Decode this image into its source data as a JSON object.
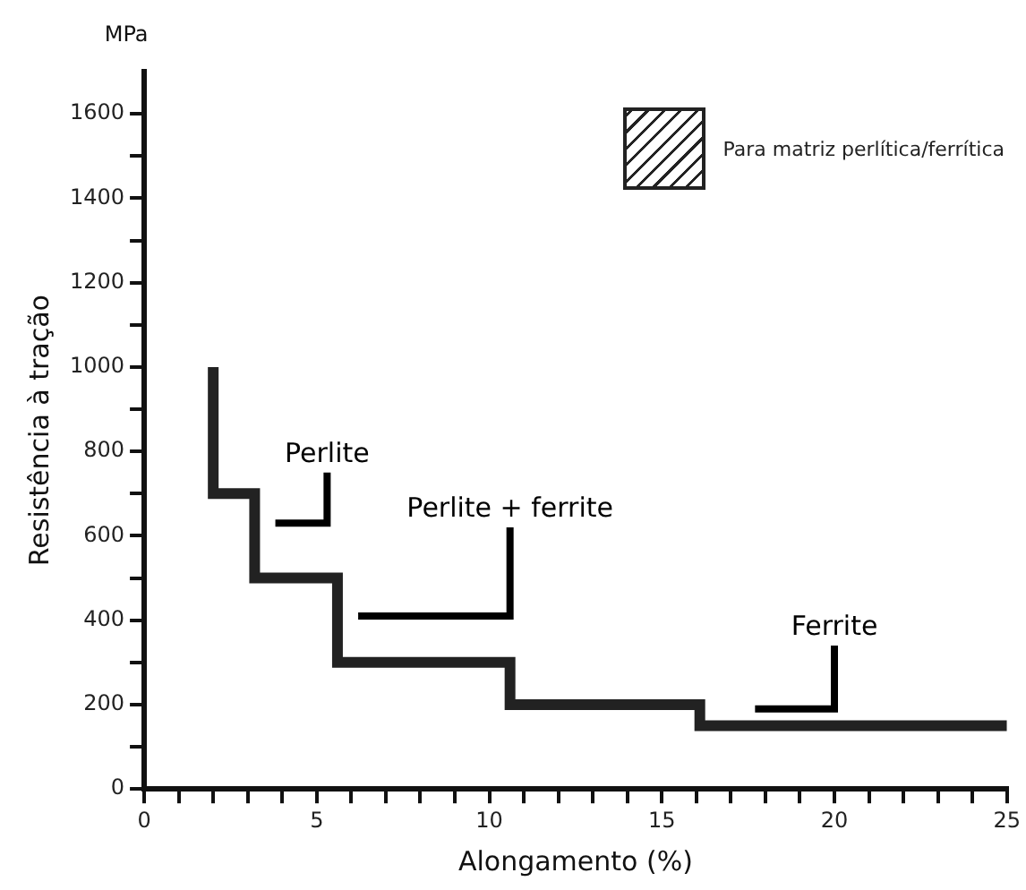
{
  "chart_data": {
    "type": "step",
    "xlabel": "Alongamento (%)",
    "ylabel": "Resistência à tração",
    "annotations": [
      "MPa"
    ],
    "xlim": [
      0,
      25
    ],
    "ylim": [
      0,
      1700
    ],
    "xticks": [
      0,
      {
        "value": 1,
        "label": null
      },
      {
        "value": 2,
        "label": null
      },
      {
        "value": 3,
        "label": null
      },
      {
        "value": 4,
        "label": null
      },
      5,
      {
        "value": 6,
        "label": null
      },
      {
        "value": 7,
        "label": null
      },
      {
        "value": 8,
        "label": null
      },
      {
        "value": 9,
        "label": null
      },
      10,
      {
        "value": 11,
        "label": null
      },
      {
        "value": 12,
        "label": null
      },
      {
        "value": 13,
        "label": null
      },
      {
        "value": 14,
        "label": null
      },
      15,
      {
        "value": 16,
        "label": null
      },
      {
        "value": 17,
        "label": null
      },
      {
        "value": 18,
        "label": null
      },
      {
        "value": 19,
        "label": null
      },
      20,
      {
        "value": 21,
        "label": null
      },
      {
        "value": 22,
        "label": null
      },
      {
        "value": 23,
        "label": null
      },
      {
        "value": 24,
        "label": null
      },
      25
    ],
    "yticks": [
      0,
      {
        "value": 100,
        "label": null
      },
      200,
      {
        "value": 300,
        "label": null
      },
      400,
      {
        "value": 500,
        "label": null
      },
      600,
      {
        "value": 700,
        "label": null
      },
      800,
      {
        "value": 900,
        "label": null
      },
      1000,
      {
        "value": 1100,
        "label": null
      },
      1200,
      {
        "value": 1300,
        "label": null
      },
      1400,
      {
        "value": 1500,
        "label": null
      },
      1600
    ],
    "grid": false,
    "legend": "top right",
    "marker": "none",
    "series": [
      {
        "name": "Para matriz perlítica/ferrítica",
        "color": "#222222",
        "x": [
          2,
          3.2,
          5.6,
          10.6,
          16.1,
          25
        ],
        "values": [
          1000,
          700,
          500,
          300,
          200,
          150
        ]
      },
      {
        "name": "Perlite",
        "type": "line",
        "color": "#000000",
        "x": [
          3.8,
          5.3,
          5.3
        ],
        "values": [
          630,
          630,
          750
        ]
      },
      {
        "name": "Perlite + ferrite",
        "type": "line",
        "color": "#000000",
        "x": [
          6.2,
          10.6,
          10.6
        ],
        "values": [
          410,
          410,
          620
        ]
      },
      {
        "name": "Ferrite",
        "type": "line",
        "color": "#000000",
        "x": [
          17.7,
          20,
          20
        ],
        "values": [
          190,
          190,
          340
        ]
      }
    ]
  }
}
